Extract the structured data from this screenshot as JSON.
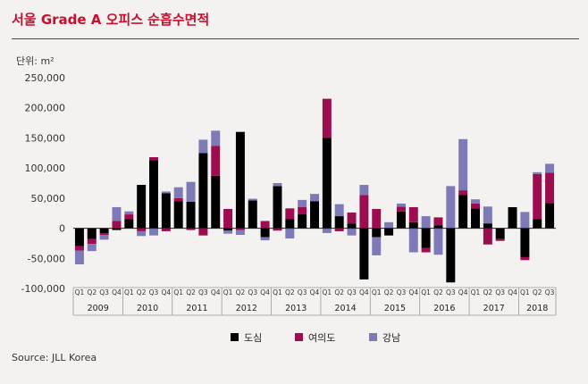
{
  "title": "서울 Grade A 오피스 순흡수면적",
  "unit": "단위: m²",
  "source": "Source: JLL Korea",
  "colors": {
    "도심": "#000000",
    "여의도": "#9b0d4f",
    "강남": "#7e7ab8",
    "title": "#c8102e"
  },
  "chart_data": {
    "type": "bar",
    "stacked": true,
    "ylim": [
      -100000,
      250000
    ],
    "y_ticks": [
      "250,000",
      "200,000",
      "150,000",
      "100,000",
      "50,000",
      "0",
      "-50,000",
      "-100,000"
    ],
    "y_tick_values": [
      250000,
      200000,
      150000,
      100000,
      50000,
      0,
      -50000,
      -100000
    ],
    "quarters": [
      "Q1",
      "Q2",
      "Q3",
      "Q4",
      "Q1",
      "Q2",
      "Q3",
      "Q4",
      "Q1",
      "Q2",
      "Q3",
      "Q4",
      "Q1",
      "Q2",
      "Q3",
      "Q4",
      "Q1",
      "Q2",
      "Q3",
      "Q4",
      "Q1",
      "Q2",
      "Q3",
      "Q4",
      "Q1",
      "Q2",
      "Q3",
      "Q4",
      "Q1",
      "Q2",
      "Q3",
      "Q4",
      "Q1",
      "Q2",
      "Q3",
      "Q4",
      "Q1",
      "Q2",
      "Q3"
    ],
    "years": [
      "2009",
      "2010",
      "2011",
      "2012",
      "2013",
      "2014",
      "2015",
      "2016",
      "2017",
      "2018"
    ],
    "legend": [
      "도심",
      "여의도",
      "강남"
    ],
    "legend_position": "bottom",
    "series": [
      {
        "name": "도심",
        "values": [
          -30000,
          -18000,
          -8000,
          -3000,
          15000,
          72000,
          113000,
          58000,
          45000,
          44000,
          125000,
          87000,
          -4000,
          160000,
          46000,
          -15000,
          70000,
          15000,
          23000,
          45000,
          150000,
          20000,
          8000,
          -85000,
          -15000,
          -12000,
          28000,
          10000,
          -33000,
          5000,
          -90000,
          55000,
          33000,
          8000,
          -18000,
          35000,
          -48000,
          15000,
          42000
        ]
      },
      {
        "name": "여의도",
        "values": [
          -7000,
          -8000,
          -3000,
          12000,
          8000,
          -5000,
          5000,
          -5000,
          5000,
          -3000,
          -12000,
          50000,
          32000,
          -3000,
          0,
          12000,
          -4000,
          18000,
          12000,
          0,
          65000,
          -5000,
          18000,
          55000,
          32000,
          0,
          8000,
          25000,
          -7000,
          13000,
          0,
          8000,
          8000,
          -27000,
          -3000,
          0,
          -5000,
          75000,
          50000
        ]
      },
      {
        "name": "강남",
        "values": [
          -23000,
          -12000,
          -8000,
          23000,
          5000,
          -8000,
          -12000,
          3000,
          18000,
          33000,
          22000,
          25000,
          -5000,
          -8000,
          3000,
          -5000,
          5000,
          -17000,
          12000,
          12000,
          -8000,
          20000,
          -12000,
          17000,
          -30000,
          10000,
          5000,
          -40000,
          20000,
          -44000,
          70000,
          85000,
          7000,
          28000,
          0,
          0,
          27000,
          3000,
          15000
        ]
      }
    ]
  }
}
